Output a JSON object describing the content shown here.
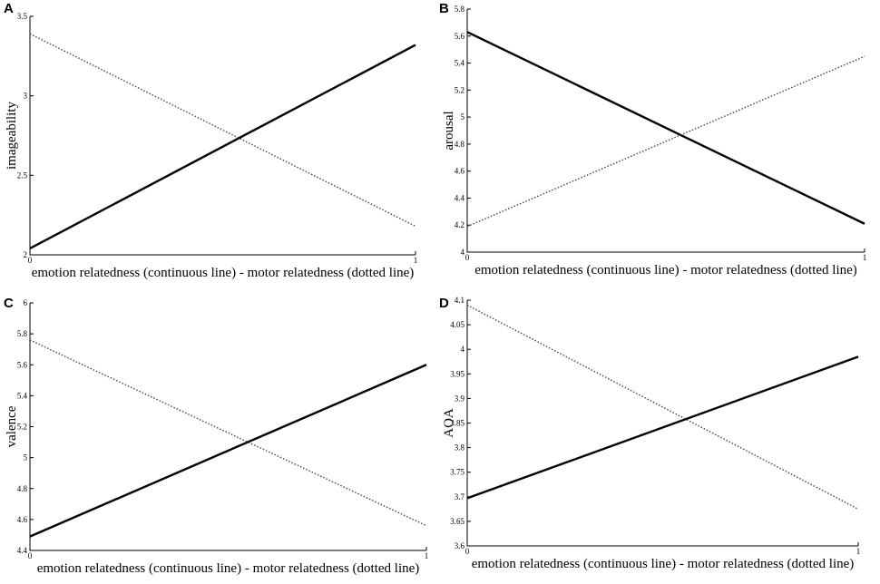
{
  "chart_data": [
    {
      "panel": "A",
      "type": "line",
      "xlabel": "emotion relatedness (continuous line) - motor relatedness (dotted line)",
      "ylabel": "imageability",
      "xlim": [
        0,
        1
      ],
      "ylim": [
        2,
        3.5
      ],
      "xticks": [
        "0",
        "1"
      ],
      "yticks": [
        "2",
        "2.5",
        "3",
        "3.5"
      ],
      "series": [
        {
          "style": "continuous",
          "x": [
            0,
            1
          ],
          "y": [
            2.04,
            3.32
          ]
        },
        {
          "style": "dotted",
          "x": [
            0,
            1
          ],
          "y": [
            3.39,
            2.18
          ]
        }
      ]
    },
    {
      "panel": "B",
      "type": "line",
      "xlabel": "emotion relatedness (continuous line) - motor relatedness (dotted line)",
      "ylabel": "arousal",
      "xlim": [
        0,
        1
      ],
      "ylim": [
        4,
        5.8
      ],
      "xticks": [
        "0",
        "1"
      ],
      "yticks": [
        "4",
        "4.2",
        "4.4",
        "4.6",
        "4.8",
        "5",
        "5.2",
        "5.4",
        "5.6",
        "5.8"
      ],
      "series": [
        {
          "style": "continuous",
          "x": [
            0,
            1
          ],
          "y": [
            5.63,
            4.21
          ]
        },
        {
          "style": "dotted",
          "x": [
            0,
            1
          ],
          "y": [
            4.19,
            5.45
          ]
        }
      ]
    },
    {
      "panel": "C",
      "type": "line",
      "xlabel": "emotion relatedness (continuous line) - motor relatedness (dotted line)",
      "ylabel": "valence",
      "xlim": [
        0,
        1
      ],
      "ylim": [
        4.4,
        6
      ],
      "xticks": [
        "0",
        "1"
      ],
      "yticks": [
        "4.4",
        "4.6",
        "4.8",
        "5",
        "5.2",
        "5.4",
        "5.6",
        "5.8",
        "6"
      ],
      "series": [
        {
          "style": "continuous",
          "x": [
            0,
            1
          ],
          "y": [
            4.49,
            5.6
          ]
        },
        {
          "style": "dotted",
          "x": [
            0,
            1
          ],
          "y": [
            5.76,
            4.56
          ]
        }
      ]
    },
    {
      "panel": "D",
      "type": "line",
      "xlabel": "emotion relatedness (continuous line) - motor relatedness (dotted line)",
      "ylabel": "AOA",
      "xlim": [
        0,
        1
      ],
      "ylim": [
        3.6,
        4.1
      ],
      "xticks": [
        "0",
        "1"
      ],
      "yticks": [
        "3.6",
        "3.65",
        "3.7",
        "3.75",
        "3.8",
        "3.85",
        "3.9",
        "3.95",
        "4",
        "4.05",
        "4.1"
      ],
      "series": [
        {
          "style": "continuous",
          "x": [
            0,
            1
          ],
          "y": [
            3.697,
            3.985
          ]
        },
        {
          "style": "dotted",
          "x": [
            0,
            1
          ],
          "y": [
            4.09,
            3.675
          ]
        }
      ]
    }
  ]
}
